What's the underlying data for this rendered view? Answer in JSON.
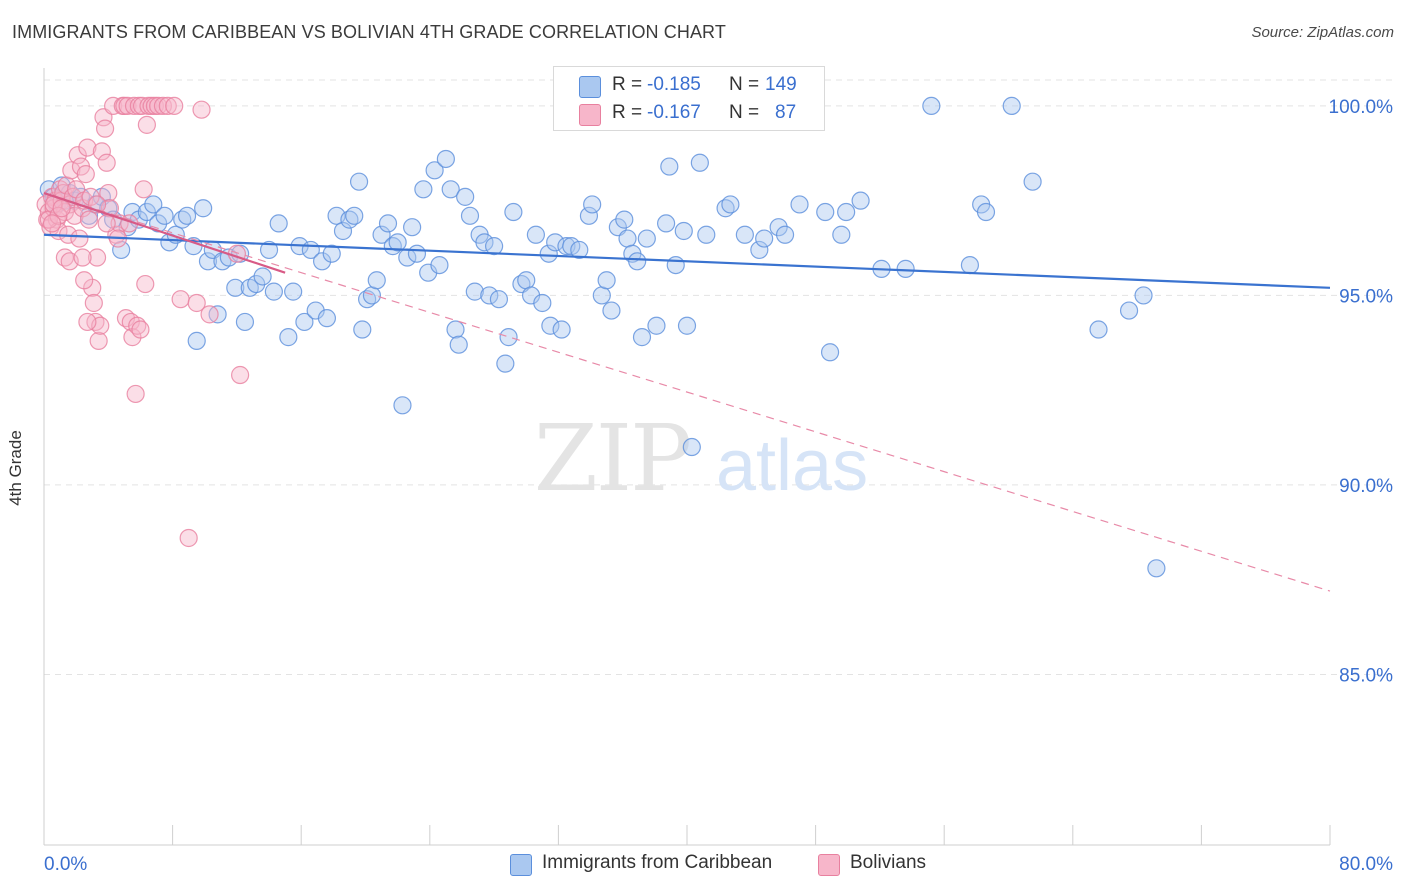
{
  "title": "IMMIGRANTS FROM CARIBBEAN VS BOLIVIAN 4TH GRADE CORRELATION CHART",
  "source": "Source: ZipAtlas.com",
  "watermark": {
    "zip": "ZIP",
    "atlas": "atlas"
  },
  "legend": {
    "rows": [
      {
        "r_label": "R =",
        "r_value": "-0.185",
        "n_label": "N =",
        "n_value": "149",
        "color": "#aac8f0"
      },
      {
        "r_label": "R =",
        "r_value": "-0.167",
        "n_label": "N =",
        "n_value": "87",
        "color": "#f7b6ca"
      }
    ]
  },
  "bottom_legend": [
    {
      "label": "Immigrants from Caribbean",
      "color": "#aac8f0"
    },
    {
      "label": "Bolivians",
      "color": "#f7b6ca"
    }
  ],
  "chart_data": {
    "type": "scatter",
    "title": "IMMIGRANTS FROM CARIBBEAN VS BOLIVIAN 4TH GRADE CORRELATION CHART",
    "xlabel": "",
    "ylabel": "4th Grade",
    "xlim": [
      0,
      80
    ],
    "ylim": [
      80.5,
      101.0
    ],
    "x_tick_labels": [
      "0.0%",
      "80.0%"
    ],
    "y_ticks": [
      100,
      95,
      90,
      85
    ],
    "y_tick_labels": [
      "100.0%",
      "95.0%",
      "90.0%",
      "85.0%"
    ],
    "grid": true,
    "legend_position": "top-center",
    "series": [
      {
        "name": "Immigrants from Caribbean",
        "color": "#5b8fdc",
        "fill": "#aac8f0",
        "trend": {
          "x": [
            0,
            80
          ],
          "y": [
            96.6,
            95.2
          ],
          "style": "solid",
          "color": "#3a73d0"
        },
        "points": [
          [
            0.3,
            97.8
          ],
          [
            0.6,
            97.6
          ],
          [
            0.8,
            97.4
          ],
          [
            1.1,
            97.9
          ],
          [
            1.3,
            97.5
          ],
          [
            1.6,
            97.7
          ],
          [
            1.9,
            97.5
          ],
          [
            2.3,
            97.6
          ],
          [
            2.8,
            97.1
          ],
          [
            3.2,
            97.4
          ],
          [
            3.6,
            97.6
          ],
          [
            4.0,
            97.3
          ],
          [
            4.3,
            97.0
          ],
          [
            4.8,
            96.2
          ],
          [
            5.2,
            96.8
          ],
          [
            5.5,
            97.2
          ],
          [
            5.9,
            97.0
          ],
          [
            6.4,
            97.2
          ],
          [
            6.8,
            97.4
          ],
          [
            7.1,
            96.9
          ],
          [
            7.5,
            97.1
          ],
          [
            7.8,
            96.4
          ],
          [
            8.2,
            96.6
          ],
          [
            8.6,
            97.0
          ],
          [
            8.9,
            97.1
          ],
          [
            9.3,
            96.3
          ],
          [
            9.5,
            93.8
          ],
          [
            9.9,
            97.3
          ],
          [
            10.2,
            95.9
          ],
          [
            10.5,
            96.2
          ],
          [
            10.8,
            94.5
          ],
          [
            11.1,
            95.9
          ],
          [
            11.5,
            96.0
          ],
          [
            11.9,
            95.2
          ],
          [
            12.2,
            96.1
          ],
          [
            12.5,
            94.3
          ],
          [
            12.8,
            95.2
          ],
          [
            13.2,
            95.3
          ],
          [
            13.6,
            95.5
          ],
          [
            14.0,
            96.2
          ],
          [
            14.3,
            95.1
          ],
          [
            14.6,
            96.9
          ],
          [
            15.2,
            93.9
          ],
          [
            15.5,
            95.1
          ],
          [
            15.9,
            96.3
          ],
          [
            16.2,
            94.3
          ],
          [
            16.6,
            96.2
          ],
          [
            16.9,
            94.6
          ],
          [
            17.3,
            95.9
          ],
          [
            17.6,
            94.4
          ],
          [
            17.9,
            96.1
          ],
          [
            18.2,
            97.1
          ],
          [
            18.6,
            96.7
          ],
          [
            19.0,
            97.0
          ],
          [
            19.3,
            97.1
          ],
          [
            19.6,
            98.0
          ],
          [
            19.8,
            94.1
          ],
          [
            20.1,
            94.9
          ],
          [
            20.4,
            95.0
          ],
          [
            20.7,
            95.4
          ],
          [
            21.0,
            96.6
          ],
          [
            21.4,
            96.9
          ],
          [
            21.7,
            96.3
          ],
          [
            22.0,
            96.4
          ],
          [
            22.3,
            92.1
          ],
          [
            22.6,
            96.0
          ],
          [
            22.9,
            96.8
          ],
          [
            23.2,
            96.1
          ],
          [
            23.6,
            97.8
          ],
          [
            23.9,
            95.6
          ],
          [
            24.3,
            98.3
          ],
          [
            24.6,
            95.8
          ],
          [
            25.0,
            98.6
          ],
          [
            25.3,
            97.8
          ],
          [
            25.6,
            94.1
          ],
          [
            25.8,
            93.7
          ],
          [
            26.2,
            97.6
          ],
          [
            26.5,
            97.1
          ],
          [
            26.8,
            95.1
          ],
          [
            27.1,
            96.6
          ],
          [
            27.4,
            96.4
          ],
          [
            27.7,
            95.0
          ],
          [
            28.0,
            96.3
          ],
          [
            28.3,
            94.9
          ],
          [
            28.7,
            93.2
          ],
          [
            28.9,
            93.9
          ],
          [
            29.2,
            97.2
          ],
          [
            29.7,
            95.3
          ],
          [
            30.0,
            95.4
          ],
          [
            30.3,
            95.0
          ],
          [
            30.6,
            96.6
          ],
          [
            31.0,
            94.8
          ],
          [
            31.4,
            96.1
          ],
          [
            31.5,
            94.2
          ],
          [
            31.8,
            96.4
          ],
          [
            32.2,
            94.1
          ],
          [
            32.5,
            96.3
          ],
          [
            32.8,
            96.3
          ],
          [
            33.3,
            96.2
          ],
          [
            33.9,
            97.1
          ],
          [
            34.1,
            97.4
          ],
          [
            34.7,
            95.0
          ],
          [
            35.0,
            95.4
          ],
          [
            35.3,
            94.6
          ],
          [
            35.7,
            96.8
          ],
          [
            36.1,
            97.0
          ],
          [
            36.3,
            96.5
          ],
          [
            36.6,
            96.1
          ],
          [
            36.9,
            95.9
          ],
          [
            37.2,
            93.9
          ],
          [
            37.5,
            96.5
          ],
          [
            38.1,
            94.2
          ],
          [
            38.7,
            96.9
          ],
          [
            38.9,
            98.4
          ],
          [
            39.3,
            95.8
          ],
          [
            39.8,
            96.7
          ],
          [
            40.0,
            94.2
          ],
          [
            40.3,
            91.0
          ],
          [
            40.8,
            98.5
          ],
          [
            41.2,
            96.6
          ],
          [
            42.4,
            97.3
          ],
          [
            42.7,
            97.4
          ],
          [
            43.6,
            96.6
          ],
          [
            44.5,
            96.2
          ],
          [
            44.8,
            96.5
          ],
          [
            45.7,
            96.8
          ],
          [
            46.1,
            96.6
          ],
          [
            47.0,
            97.4
          ],
          [
            48.6,
            97.2
          ],
          [
            48.9,
            93.5
          ],
          [
            49.6,
            96.6
          ],
          [
            49.9,
            97.2
          ],
          [
            50.8,
            97.5
          ],
          [
            52.1,
            95.7
          ],
          [
            53.6,
            95.7
          ],
          [
            55.2,
            100.0
          ],
          [
            57.6,
            95.8
          ],
          [
            58.3,
            97.4
          ],
          [
            58.6,
            97.2
          ],
          [
            60.2,
            100.0
          ],
          [
            61.5,
            98.0
          ],
          [
            65.6,
            94.1
          ],
          [
            67.5,
            94.6
          ],
          [
            68.4,
            95.0
          ],
          [
            69.2,
            87.8
          ]
        ]
      },
      {
        "name": "Bolivians",
        "color": "#e8809f",
        "fill": "#f7b6ca",
        "trend_solid": {
          "x": [
            0,
            15
          ],
          "y": [
            97.7,
            95.6
          ],
          "style": "solid",
          "color": "#d85a86"
        },
        "trend": {
          "x": [
            0,
            80
          ],
          "y": [
            97.7,
            87.2
          ],
          "style": "dashed",
          "color": "#e88aa8"
        },
        "points": [
          [
            0.1,
            97.4
          ],
          [
            0.2,
            97.0
          ],
          [
            0.3,
            97.2
          ],
          [
            0.4,
            96.8
          ],
          [
            0.5,
            97.6
          ],
          [
            0.6,
            97.3
          ],
          [
            0.7,
            97.5
          ],
          [
            0.8,
            97.0
          ],
          [
            0.9,
            96.7
          ],
          [
            1.0,
            97.8
          ],
          [
            1.1,
            97.5
          ],
          [
            1.2,
            97.7
          ],
          [
            1.3,
            97.2
          ],
          [
            1.4,
            97.9
          ],
          [
            1.5,
            96.6
          ],
          [
            1.6,
            97.4
          ],
          [
            1.7,
            98.3
          ],
          [
            1.8,
            97.6
          ],
          [
            1.9,
            97.1
          ],
          [
            2.0,
            97.8
          ],
          [
            2.1,
            98.7
          ],
          [
            2.2,
            96.5
          ],
          [
            2.3,
            98.4
          ],
          [
            2.4,
            97.3
          ],
          [
            2.5,
            97.5
          ],
          [
            2.6,
            98.2
          ],
          [
            2.7,
            98.9
          ],
          [
            2.8,
            97.0
          ],
          [
            2.9,
            97.6
          ],
          [
            3.0,
            95.2
          ],
          [
            3.1,
            94.8
          ],
          [
            3.2,
            94.3
          ],
          [
            3.3,
            96.0
          ],
          [
            3.4,
            93.8
          ],
          [
            3.5,
            94.2
          ],
          [
            3.6,
            98.8
          ],
          [
            3.7,
            99.7
          ],
          [
            3.8,
            99.4
          ],
          [
            3.9,
            98.5
          ],
          [
            4.0,
            97.7
          ],
          [
            4.1,
            97.3
          ],
          [
            4.3,
            100.0
          ],
          [
            4.5,
            96.6
          ],
          [
            4.7,
            96.9
          ],
          [
            4.9,
            100.0
          ],
          [
            5.0,
            100.0
          ],
          [
            5.1,
            94.4
          ],
          [
            5.2,
            100.0
          ],
          [
            5.3,
            96.9
          ],
          [
            5.4,
            94.3
          ],
          [
            5.5,
            93.9
          ],
          [
            5.6,
            100.0
          ],
          [
            5.7,
            92.4
          ],
          [
            5.8,
            94.2
          ],
          [
            5.9,
            100.0
          ],
          [
            6.0,
            94.1
          ],
          [
            6.1,
            100.0
          ],
          [
            6.2,
            97.8
          ],
          [
            6.3,
            95.3
          ],
          [
            6.4,
            99.5
          ],
          [
            6.5,
            100.0
          ],
          [
            6.7,
            100.0
          ],
          [
            6.9,
            100.0
          ],
          [
            7.1,
            100.0
          ],
          [
            7.4,
            100.0
          ],
          [
            7.7,
            100.0
          ],
          [
            8.1,
            100.0
          ],
          [
            8.5,
            94.9
          ],
          [
            9.0,
            88.6
          ],
          [
            9.5,
            94.8
          ],
          [
            9.8,
            99.9
          ],
          [
            10.3,
            94.5
          ],
          [
            12.0,
            96.1
          ],
          [
            12.2,
            92.9
          ],
          [
            0.3,
            97.0
          ],
          [
            0.6,
            97.4
          ],
          [
            1.3,
            96.0
          ],
          [
            1.6,
            95.9
          ],
          [
            2.5,
            95.4
          ],
          [
            2.7,
            94.3
          ],
          [
            3.9,
            96.9
          ],
          [
            4.6,
            96.5
          ],
          [
            0.9,
            97.1
          ],
          [
            1.1,
            97.3
          ],
          [
            0.5,
            96.9
          ],
          [
            2.4,
            96.0
          ],
          [
            3.3,
            97.4
          ]
        ]
      }
    ]
  }
}
